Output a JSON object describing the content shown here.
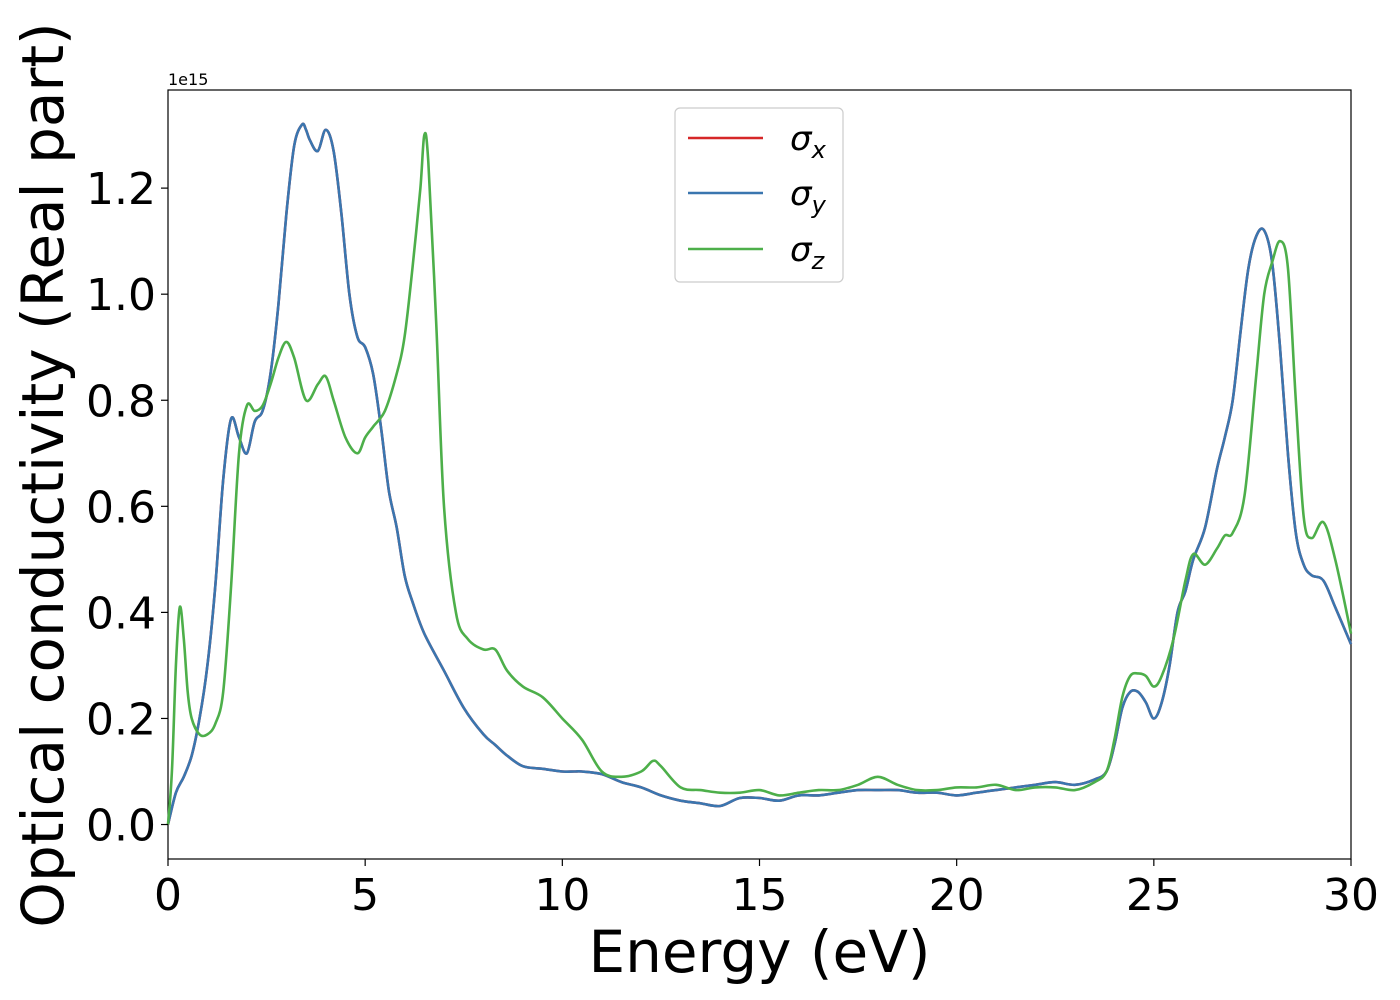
{
  "chart_data": {
    "type": "line",
    "xlabel": "Energy (eV)",
    "ylabel": "Optical conductivity (Real part)",
    "y_offset_label": "1e15",
    "xlim": [
      0,
      30
    ],
    "ylim": [
      -0.065,
      1.385
    ],
    "x_ticks": [
      0,
      5,
      10,
      15,
      20,
      25,
      30
    ],
    "x_tick_labels": [
      "0",
      "5",
      "10",
      "15",
      "20",
      "25",
      "30"
    ],
    "y_ticks": [
      0.0,
      0.2,
      0.4,
      0.6,
      0.8,
      1.0,
      1.2
    ],
    "y_tick_labels": [
      "0.0",
      "0.2",
      "0.4",
      "0.6",
      "0.8",
      "1.0",
      "1.2"
    ],
    "grid": false,
    "legend_position": "top-center",
    "series": [
      {
        "name": "σx",
        "symbol": "σ",
        "subscript": "x",
        "color": "#d62728",
        "x": [
          0,
          0.2,
          0.4,
          0.6,
          0.8,
          1.0,
          1.2,
          1.4,
          1.6,
          1.8,
          2.0,
          2.2,
          2.4,
          2.6,
          2.8,
          3.0,
          3.2,
          3.4,
          3.5,
          3.6,
          3.8,
          4.0,
          4.2,
          4.4,
          4.6,
          4.8,
          5.0,
          5.2,
          5.4,
          5.6,
          5.8,
          6.0,
          6.2,
          6.5,
          7.0,
          7.5,
          8.0,
          8.3,
          8.6,
          9.0,
          9.5,
          10.0,
          10.3,
          10.5,
          11.0,
          11.5,
          12.0,
          12.5,
          13.0,
          13.5,
          14.0,
          14.5,
          15.0,
          15.5,
          16.0,
          16.5,
          17.0,
          17.5,
          18.0,
          18.5,
          19.0,
          19.5,
          20.0,
          20.5,
          21.0,
          21.5,
          22.0,
          22.5,
          23.0,
          23.5,
          23.8,
          24.0,
          24.2,
          24.4,
          24.6,
          24.8,
          25.0,
          25.2,
          25.4,
          25.6,
          25.8,
          26.0,
          26.3,
          26.6,
          26.8,
          27.0,
          27.2,
          27.4,
          27.6,
          27.8,
          28.0,
          28.2,
          28.4,
          28.6,
          28.8,
          29.0,
          29.3,
          29.6,
          30.0
        ],
        "y": [
          0.0,
          0.06,
          0.09,
          0.13,
          0.2,
          0.3,
          0.45,
          0.65,
          0.765,
          0.73,
          0.7,
          0.76,
          0.78,
          0.85,
          0.98,
          1.15,
          1.28,
          1.32,
          1.31,
          1.29,
          1.27,
          1.31,
          1.27,
          1.15,
          1.0,
          0.92,
          0.9,
          0.85,
          0.75,
          0.63,
          0.56,
          0.47,
          0.42,
          0.36,
          0.29,
          0.22,
          0.17,
          0.15,
          0.13,
          0.11,
          0.105,
          0.1,
          0.1,
          0.1,
          0.095,
          0.08,
          0.07,
          0.055,
          0.045,
          0.04,
          0.035,
          0.05,
          0.05,
          0.045,
          0.055,
          0.055,
          0.06,
          0.065,
          0.065,
          0.065,
          0.06,
          0.06,
          0.055,
          0.06,
          0.065,
          0.07,
          0.075,
          0.08,
          0.075,
          0.085,
          0.1,
          0.15,
          0.22,
          0.25,
          0.25,
          0.23,
          0.2,
          0.23,
          0.3,
          0.4,
          0.44,
          0.5,
          0.56,
          0.67,
          0.73,
          0.8,
          0.93,
          1.05,
          1.11,
          1.12,
          1.06,
          0.9,
          0.7,
          0.55,
          0.49,
          0.47,
          0.46,
          0.41,
          0.34
        ]
      },
      {
        "name": "σy",
        "symbol": "σ",
        "subscript": "y",
        "color": "#3a76af",
        "x": [
          0,
          0.2,
          0.4,
          0.6,
          0.8,
          1.0,
          1.2,
          1.4,
          1.6,
          1.8,
          2.0,
          2.2,
          2.4,
          2.6,
          2.8,
          3.0,
          3.2,
          3.4,
          3.5,
          3.6,
          3.8,
          4.0,
          4.2,
          4.4,
          4.6,
          4.8,
          5.0,
          5.2,
          5.4,
          5.6,
          5.8,
          6.0,
          6.2,
          6.5,
          7.0,
          7.5,
          8.0,
          8.3,
          8.6,
          9.0,
          9.5,
          10.0,
          10.3,
          10.5,
          11.0,
          11.5,
          12.0,
          12.5,
          13.0,
          13.5,
          14.0,
          14.5,
          15.0,
          15.5,
          16.0,
          16.5,
          17.0,
          17.5,
          18.0,
          18.5,
          19.0,
          19.5,
          20.0,
          20.5,
          21.0,
          21.5,
          22.0,
          22.5,
          23.0,
          23.5,
          23.8,
          24.0,
          24.2,
          24.4,
          24.6,
          24.8,
          25.0,
          25.2,
          25.4,
          25.6,
          25.8,
          26.0,
          26.3,
          26.6,
          26.8,
          27.0,
          27.2,
          27.4,
          27.6,
          27.8,
          28.0,
          28.2,
          28.4,
          28.6,
          28.8,
          29.0,
          29.3,
          29.6,
          30.0
        ],
        "y": [
          0.0,
          0.06,
          0.09,
          0.13,
          0.2,
          0.3,
          0.45,
          0.65,
          0.765,
          0.73,
          0.7,
          0.76,
          0.78,
          0.85,
          0.98,
          1.15,
          1.28,
          1.32,
          1.31,
          1.29,
          1.27,
          1.31,
          1.27,
          1.15,
          1.0,
          0.92,
          0.9,
          0.85,
          0.75,
          0.63,
          0.56,
          0.47,
          0.42,
          0.36,
          0.29,
          0.22,
          0.17,
          0.15,
          0.13,
          0.11,
          0.105,
          0.1,
          0.1,
          0.1,
          0.095,
          0.08,
          0.07,
          0.055,
          0.045,
          0.04,
          0.035,
          0.05,
          0.05,
          0.045,
          0.055,
          0.055,
          0.06,
          0.065,
          0.065,
          0.065,
          0.06,
          0.06,
          0.055,
          0.06,
          0.065,
          0.07,
          0.075,
          0.08,
          0.075,
          0.085,
          0.1,
          0.15,
          0.22,
          0.25,
          0.25,
          0.23,
          0.2,
          0.23,
          0.3,
          0.4,
          0.44,
          0.5,
          0.56,
          0.67,
          0.73,
          0.8,
          0.93,
          1.05,
          1.11,
          1.12,
          1.06,
          0.9,
          0.7,
          0.55,
          0.49,
          0.47,
          0.46,
          0.41,
          0.34
        ]
      },
      {
        "name": "σz",
        "symbol": "σ",
        "subscript": "z",
        "color": "#4daf4a",
        "x": [
          0,
          0.1,
          0.2,
          0.3,
          0.4,
          0.5,
          0.6,
          0.8,
          1.0,
          1.2,
          1.4,
          1.6,
          1.8,
          2.0,
          2.2,
          2.4,
          2.6,
          2.8,
          3.0,
          3.2,
          3.5,
          3.8,
          4.0,
          4.2,
          4.5,
          4.8,
          5.0,
          5.2,
          5.5,
          5.8,
          6.0,
          6.2,
          6.4,
          6.5,
          6.6,
          6.8,
          7.0,
          7.3,
          7.6,
          8.0,
          8.3,
          8.6,
          9.0,
          9.5,
          10.0,
          10.5,
          11.0,
          11.5,
          12.0,
          12.3,
          12.5,
          13.0,
          13.5,
          14.0,
          14.5,
          15.0,
          15.5,
          16.0,
          16.5,
          17.0,
          17.5,
          18.0,
          18.5,
          19.0,
          19.5,
          20.0,
          20.5,
          21.0,
          21.5,
          22.0,
          22.5,
          23.0,
          23.5,
          23.8,
          24.0,
          24.2,
          24.4,
          24.6,
          24.8,
          25.0,
          25.2,
          25.5,
          25.8,
          26.0,
          26.3,
          26.6,
          26.8,
          27.0,
          27.3,
          27.6,
          27.8,
          28.0,
          28.2,
          28.4,
          28.6,
          28.8,
          29.0,
          29.3,
          29.6,
          30.0
        ],
        "y": [
          0.0,
          0.1,
          0.3,
          0.41,
          0.35,
          0.25,
          0.2,
          0.17,
          0.17,
          0.19,
          0.25,
          0.45,
          0.7,
          0.79,
          0.78,
          0.79,
          0.83,
          0.88,
          0.91,
          0.88,
          0.8,
          0.83,
          0.845,
          0.8,
          0.73,
          0.7,
          0.73,
          0.75,
          0.78,
          0.85,
          0.92,
          1.05,
          1.2,
          1.3,
          1.25,
          0.95,
          0.6,
          0.4,
          0.35,
          0.33,
          0.33,
          0.29,
          0.26,
          0.24,
          0.2,
          0.16,
          0.1,
          0.09,
          0.1,
          0.12,
          0.11,
          0.07,
          0.065,
          0.06,
          0.06,
          0.065,
          0.055,
          0.06,
          0.065,
          0.065,
          0.075,
          0.09,
          0.075,
          0.065,
          0.065,
          0.07,
          0.07,
          0.075,
          0.065,
          0.07,
          0.07,
          0.065,
          0.08,
          0.1,
          0.16,
          0.24,
          0.28,
          0.285,
          0.28,
          0.26,
          0.28,
          0.35,
          0.46,
          0.51,
          0.49,
          0.52,
          0.545,
          0.55,
          0.62,
          0.85,
          1.0,
          1.06,
          1.1,
          1.05,
          0.8,
          0.58,
          0.54,
          0.57,
          0.5,
          0.36
        ]
      }
    ]
  }
}
